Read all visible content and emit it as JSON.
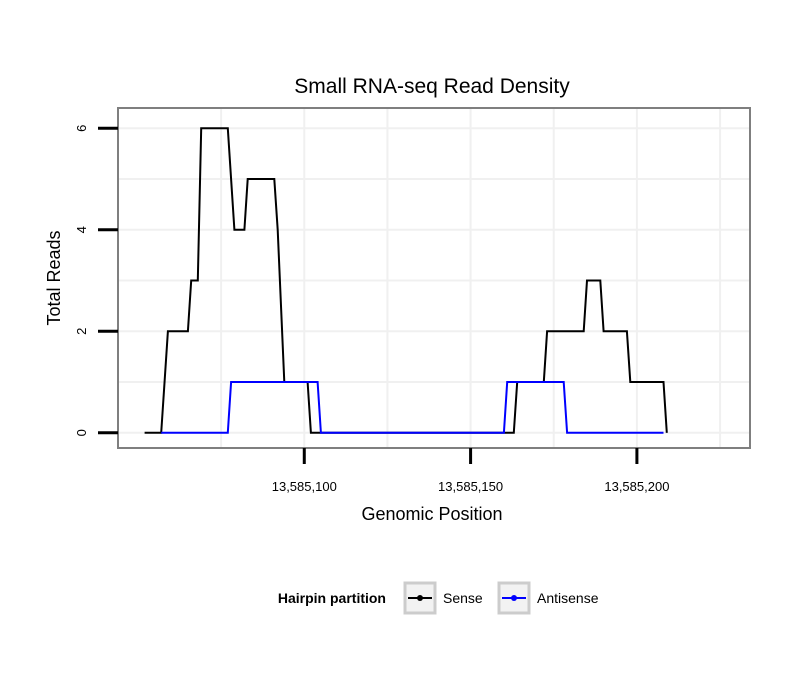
{
  "chart_data": {
    "type": "line",
    "title": "Small RNA-seq Read Density",
    "xlabel": "Genomic Position",
    "ylabel": "Total Reads",
    "xlim": [
      13585044,
      13585234
    ],
    "ylim": [
      -0.3,
      6.4
    ],
    "x_ticks": [
      13585100,
      13585150,
      13585200
    ],
    "x_tick_labels": [
      "13,585,100",
      "13,585,150",
      "13,585,200"
    ],
    "y_ticks": [
      0,
      2,
      4,
      6
    ],
    "y_tick_labels": [
      "0",
      "2",
      "4",
      "6"
    ],
    "legend": {
      "title": "Hairpin partition",
      "position": "bottom",
      "entries": [
        "Sense",
        "Antisense"
      ]
    },
    "series": [
      {
        "name": "Sense",
        "color": "#000000",
        "points": [
          [
            13585052,
            0
          ],
          [
            13585057,
            0
          ],
          [
            13585059,
            2
          ],
          [
            13585065,
            2
          ],
          [
            13585066,
            3
          ],
          [
            13585068,
            3
          ],
          [
            13585069,
            6
          ],
          [
            13585077,
            6
          ],
          [
            13585079,
            4
          ],
          [
            13585082,
            4
          ],
          [
            13585083,
            5
          ],
          [
            13585091,
            5
          ],
          [
            13585092,
            4
          ],
          [
            13585094,
            1
          ],
          [
            13585101,
            1
          ],
          [
            13585102,
            0
          ],
          [
            13585160,
            0
          ],
          [
            13585163,
            0
          ],
          [
            13585164,
            1
          ],
          [
            13585172,
            1
          ],
          [
            13585173,
            2
          ],
          [
            13585184,
            2
          ],
          [
            13585185,
            3
          ],
          [
            13585189,
            3
          ],
          [
            13585190,
            2
          ],
          [
            13585197,
            2
          ],
          [
            13585198,
            1
          ],
          [
            13585208,
            1
          ],
          [
            13585209,
            0
          ]
        ]
      },
      {
        "name": "Antisense",
        "color": "#0000ff",
        "points": [
          [
            13585057,
            0
          ],
          [
            13585077,
            0
          ],
          [
            13585078,
            1
          ],
          [
            13585094,
            1
          ],
          [
            13585104,
            1
          ],
          [
            13585105,
            0
          ],
          [
            13585160,
            0
          ],
          [
            13585161,
            1
          ],
          [
            13585178,
            1
          ],
          [
            13585179,
            0
          ],
          [
            13585208,
            0
          ]
        ]
      }
    ]
  }
}
